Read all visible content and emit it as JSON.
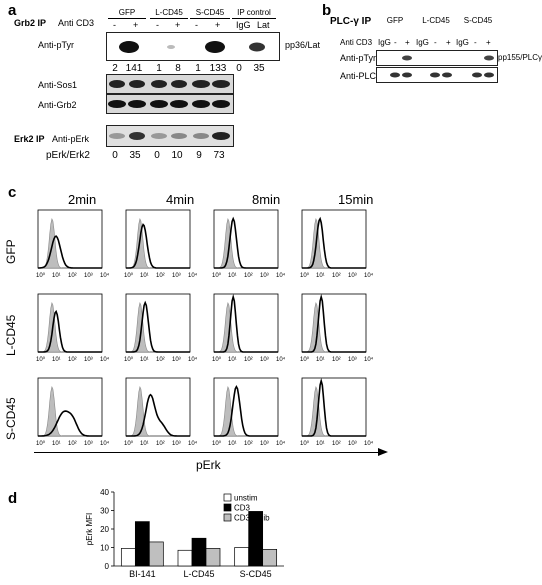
{
  "panel_a": {
    "label": "a",
    "grb2_ip": "Grb2 IP",
    "anti_cd3": "Anti CD3",
    "groups": [
      "GFP",
      "L-CD45",
      "S-CD45",
      "IP control"
    ],
    "signs": [
      "-",
      "+",
      "-",
      "+",
      "-",
      "+",
      "IgG",
      "Lat"
    ],
    "rows": [
      "Anti-pTyr",
      "Anti-Sos1",
      "Anti-Grb2"
    ],
    "pp36_label": "pp36/Lat",
    "ptyr_values": [
      "2",
      "141",
      "1",
      "8",
      "1",
      "133",
      "0",
      "35"
    ],
    "erk2_ip": "Erk2 IP",
    "anti_perk": "Anti-pErk",
    "perk_ratio_label": "pErk/Erk2",
    "perk_values": [
      "0",
      "35",
      "0",
      "10",
      "9",
      "73"
    ]
  },
  "panel_b": {
    "label": "b",
    "plc_ip": "PLC-γ IP",
    "groups": [
      "GFP",
      "L-CD45",
      "S-CD45"
    ],
    "anti_cd3": "Anti CD3",
    "signs": [
      "IgG",
      "-",
      "+",
      "IgG",
      "-",
      "+",
      "IgG",
      "-",
      "+"
    ],
    "rows": [
      "Anti-pTyr",
      "Anti-PLC γ"
    ],
    "pp155_label": "pp155/PLCγ"
  },
  "panel_c": {
    "label": "c",
    "times": [
      "2min",
      "4min",
      "8min",
      "15min"
    ],
    "rows": [
      "GFP",
      "L-CD45",
      "S-CD45"
    ],
    "xlabel": "pErk",
    "tick_labels": [
      "10⁰",
      "10¹",
      "10²",
      "10³",
      "10⁴"
    ]
  },
  "panel_d": {
    "label": "d",
    "chart_data": {
      "type": "bar",
      "categories": [
        "BI-141",
        "L-CD45",
        "S-CD45"
      ],
      "series": [
        {
          "name": "unstim",
          "values": [
            9.5,
            8.5,
            10
          ],
          "color": "#ffffff"
        },
        {
          "name": "CD3",
          "values": [
            24,
            15,
            29.5
          ],
          "color": "#000000"
        },
        {
          "name": "CD3-inhib",
          "values": [
            13,
            9.5,
            9
          ],
          "color": "#bfbfbf"
        }
      ],
      "ylabel": "pErk MFI",
      "ylim": [
        0,
        40
      ],
      "yticks": [
        "0",
        "10",
        "20",
        "30",
        "40"
      ],
      "legend": "top-right"
    }
  }
}
